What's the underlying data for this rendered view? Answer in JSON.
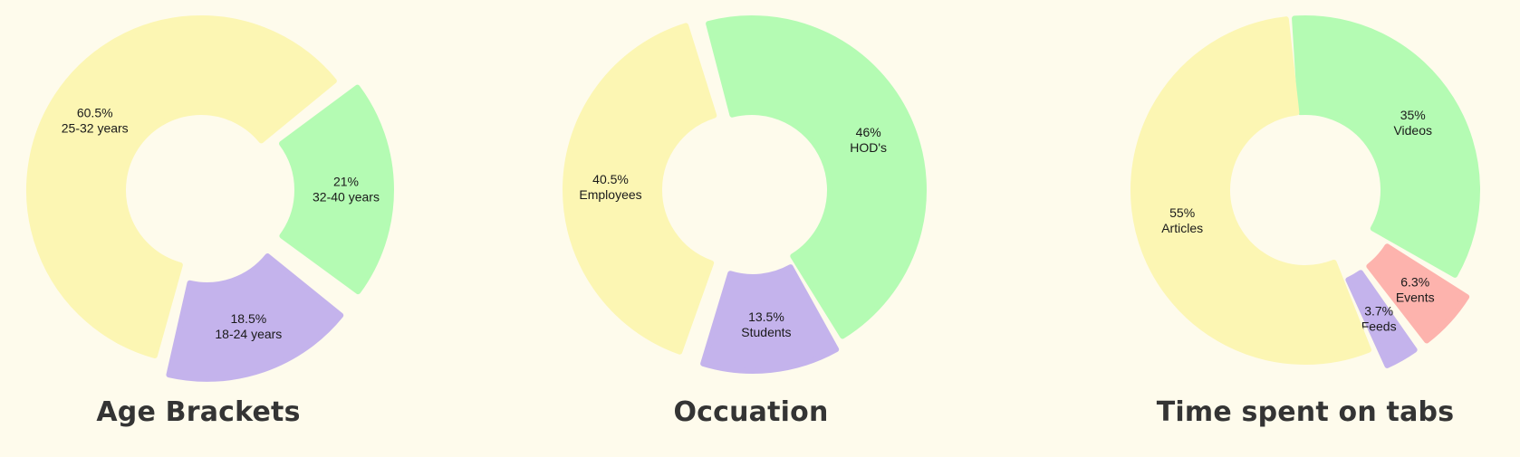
{
  "colors": {
    "background": "#fefbec",
    "yellow": "#fcf6b3",
    "green": "#b4fbb3",
    "purple": "#c4b3ec",
    "red": "#fdb3ad",
    "title_text": "#343434"
  },
  "chart_data": [
    {
      "type": "pie",
      "variant": "donut",
      "title": "Age Brackets",
      "slices": [
        {
          "value": 21,
          "value_label": "21%",
          "category": "32-40 years",
          "color": "#b4fbb3"
        },
        {
          "value": 18.5,
          "value_label": "18.5%",
          "category": "18-24 years",
          "color": "#c4b3ec"
        },
        {
          "value": 60.5,
          "value_label": "60.5%",
          "category": "25-32 years",
          "color": "#fcf6b3"
        }
      ]
    },
    {
      "type": "pie",
      "variant": "donut",
      "title": "Occuation",
      "slices": [
        {
          "value": 46,
          "value_label": "46%",
          "category": "HOD's",
          "color": "#b4fbb3"
        },
        {
          "value": 13.5,
          "value_label": "13.5%",
          "category": "Students",
          "color": "#c4b3ec"
        },
        {
          "value": 40.5,
          "value_label": "40.5%",
          "category": "Employees",
          "color": "#fcf6b3"
        }
      ]
    },
    {
      "type": "pie",
      "variant": "donut",
      "title": "Time spent on tabs",
      "slices": [
        {
          "value": 35,
          "value_label": "35%",
          "category": "Videos",
          "color": "#b4fbb3"
        },
        {
          "value": 6.3,
          "value_label": "6.3%",
          "category": "Events",
          "color": "#fdb3ad"
        },
        {
          "value": 3.7,
          "value_label": "3.7%",
          "category": "Feeds",
          "color": "#c4b3ec"
        },
        {
          "value": 55,
          "value_label": "55%",
          "category": "Articles",
          "color": "#fcf6b3"
        }
      ]
    }
  ]
}
